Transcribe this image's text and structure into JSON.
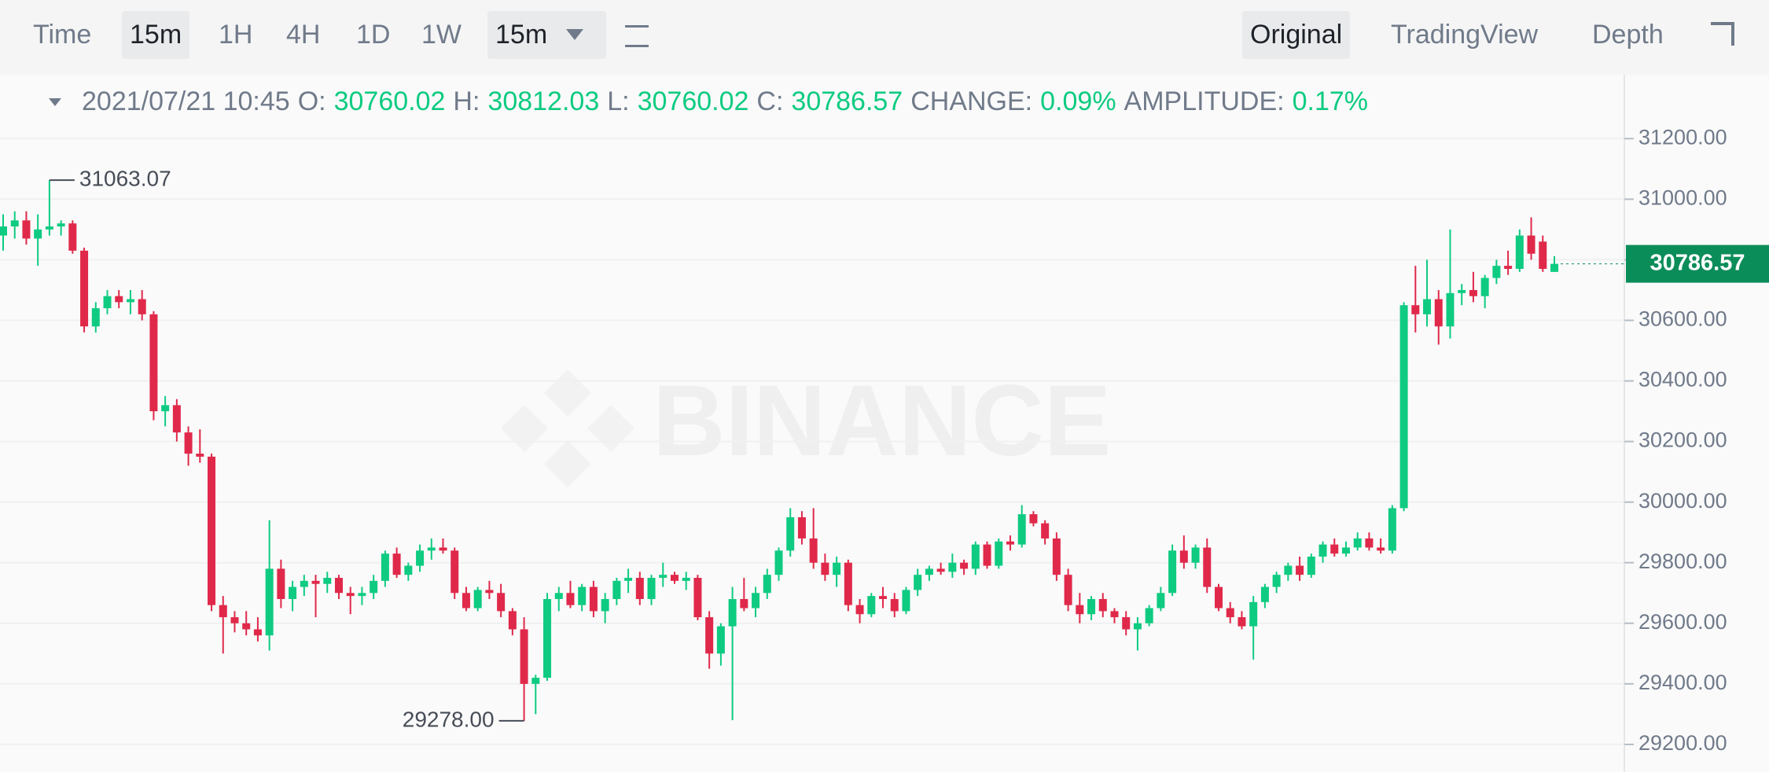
{
  "toolbar": {
    "intervals": [
      "Time",
      "15m",
      "1H",
      "4H",
      "1D",
      "1W"
    ],
    "dropdown": "15m",
    "views": [
      "Original",
      "TradingView",
      "Depth"
    ]
  },
  "info_bar": {
    "date": "2021/07/21 10:45",
    "items": [
      {
        "label": "O:",
        "value": "30760.02"
      },
      {
        "label": "H:",
        "value": "30812.03"
      },
      {
        "label": "L:",
        "value": "30760.02"
      },
      {
        "label": "C:",
        "value": "30786.57"
      },
      {
        "label": "CHANGE:",
        "value": "0.09%"
      },
      {
        "label": "AMPLITUDE:",
        "value": "0.17%"
      }
    ]
  },
  "chart_data": {
    "type": "candlestick",
    "watermark": "BINANCE",
    "up_color": "#0ecb81",
    "down_color": "#e0294a",
    "grid": true,
    "max_label": "31063.07",
    "min_label": "29278.00",
    "ylim": [
      29109,
      31411
    ],
    "yticks": [
      {
        "value": 29200,
        "label": "29200.00"
      },
      {
        "value": 29400,
        "label": "29400.00"
      },
      {
        "value": 29600,
        "label": "29600.00"
      },
      {
        "value": 29800,
        "label": "29800.00"
      },
      {
        "value": 30000,
        "label": "30000.00"
      },
      {
        "value": 30200,
        "label": "30200.00"
      },
      {
        "value": 30400,
        "label": "30400.00"
      },
      {
        "value": 30600,
        "label": "30600.00"
      },
      {
        "value": 30800,
        "label": "30800.00"
      },
      {
        "value": 31000,
        "label": "31000.00"
      },
      {
        "value": 31200,
        "label": "31200.00"
      }
    ],
    "ohlc": [
      [
        30880,
        30950,
        30830,
        30910
      ],
      [
        30910,
        30960,
        30870,
        30930
      ],
      [
        30930,
        30960,
        30850,
        30870
      ],
      [
        30870,
        30950,
        30780,
        30900
      ],
      [
        30900,
        31063.07,
        30880,
        30910
      ],
      [
        30910,
        30930,
        30880,
        30920
      ],
      [
        30920,
        30930,
        30820,
        30830
      ],
      [
        30830,
        30840,
        30560,
        30580
      ],
      [
        30580,
        30660,
        30560,
        30640
      ],
      [
        30640,
        30700,
        30620,
        30680
      ],
      [
        30680,
        30700,
        30640,
        30660
      ],
      [
        30660,
        30700,
        30620,
        30670
      ],
      [
        30670,
        30700,
        30600,
        30620
      ],
      [
        30620,
        30630,
        30270,
        30300
      ],
      [
        30300,
        30350,
        30250,
        30320
      ],
      [
        30320,
        30340,
        30200,
        30230
      ],
      [
        30230,
        30250,
        30120,
        30160
      ],
      [
        30160,
        30240,
        30130,
        30150
      ],
      [
        30150,
        30160,
        29640,
        29660
      ],
      [
        29660,
        29690,
        29500,
        29620
      ],
      [
        29620,
        29640,
        29570,
        29600
      ],
      [
        29600,
        29640,
        29560,
        29580
      ],
      [
        29580,
        29620,
        29540,
        29560
      ],
      [
        29560,
        29940,
        29510,
        29780
      ],
      [
        29780,
        29810,
        29650,
        29680
      ],
      [
        29680,
        29740,
        29640,
        29720
      ],
      [
        29720,
        29760,
        29690,
        29740
      ],
      [
        29740,
        29760,
        29620,
        29730
      ],
      [
        29730,
        29770,
        29700,
        29750
      ],
      [
        29750,
        29760,
        29680,
        29700
      ],
      [
        29700,
        29720,
        29630,
        29690
      ],
      [
        29690,
        29720,
        29660,
        29700
      ],
      [
        29700,
        29760,
        29680,
        29740
      ],
      [
        29740,
        29840,
        29720,
        29830
      ],
      [
        29830,
        29850,
        29750,
        29760
      ],
      [
        29760,
        29800,
        29740,
        29790
      ],
      [
        29790,
        29860,
        29770,
        29840
      ],
      [
        29840,
        29880,
        29810,
        29850
      ],
      [
        29850,
        29880,
        29830,
        29840
      ],
      [
        29840,
        29850,
        29680,
        29700
      ],
      [
        29700,
        29720,
        29640,
        29650
      ],
      [
        29650,
        29720,
        29640,
        29710
      ],
      [
        29710,
        29740,
        29680,
        29700
      ],
      [
        29700,
        29730,
        29620,
        29640
      ],
      [
        29640,
        29650,
        29560,
        29580
      ],
      [
        29580,
        29620,
        29278,
        29400
      ],
      [
        29400,
        29430,
        29300,
        29420
      ],
      [
        29420,
        29700,
        29410,
        29680
      ],
      [
        29680,
        29720,
        29640,
        29700
      ],
      [
        29700,
        29740,
        29650,
        29660
      ],
      [
        29660,
        29730,
        29640,
        29720
      ],
      [
        29720,
        29740,
        29620,
        29640
      ],
      [
        29640,
        29700,
        29600,
        29680
      ],
      [
        29680,
        29750,
        29660,
        29740
      ],
      [
        29740,
        29780,
        29700,
        29750
      ],
      [
        29750,
        29770,
        29660,
        29680
      ],
      [
        29680,
        29760,
        29660,
        29750
      ],
      [
        29750,
        29800,
        29720,
        29760
      ],
      [
        29760,
        29770,
        29730,
        29740
      ],
      [
        29740,
        29770,
        29710,
        29750
      ],
      [
        29750,
        29760,
        29610,
        29620
      ],
      [
        29620,
        29640,
        29450,
        29500
      ],
      [
        29500,
        29600,
        29460,
        29590
      ],
      [
        29590,
        29720,
        29280,
        29680
      ],
      [
        29680,
        29750,
        29640,
        29650
      ],
      [
        29650,
        29720,
        29620,
        29700
      ],
      [
        29700,
        29780,
        29680,
        29760
      ],
      [
        29760,
        29850,
        29740,
        29840
      ],
      [
        29840,
        29980,
        29820,
        29950
      ],
      [
        29950,
        29970,
        29860,
        29880
      ],
      [
        29880,
        29980,
        29780,
        29800
      ],
      [
        29800,
        29830,
        29740,
        29760
      ],
      [
        29760,
        29820,
        29720,
        29800
      ],
      [
        29800,
        29810,
        29640,
        29660
      ],
      [
        29660,
        29680,
        29600,
        29630
      ],
      [
        29630,
        29700,
        29620,
        29690
      ],
      [
        29690,
        29720,
        29650,
        29680
      ],
      [
        29680,
        29700,
        29620,
        29640
      ],
      [
        29640,
        29720,
        29630,
        29710
      ],
      [
        29710,
        29780,
        29690,
        29760
      ],
      [
        29760,
        29790,
        29740,
        29780
      ],
      [
        29780,
        29800,
        29760,
        29770
      ],
      [
        29770,
        29830,
        29750,
        29800
      ],
      [
        29800,
        29810,
        29760,
        29780
      ],
      [
        29780,
        29870,
        29760,
        29860
      ],
      [
        29860,
        29870,
        29780,
        29790
      ],
      [
        29790,
        29880,
        29780,
        29870
      ],
      [
        29870,
        29890,
        29840,
        29860
      ],
      [
        29860,
        29990,
        29850,
        29960
      ],
      [
        29960,
        29970,
        29920,
        29930
      ],
      [
        29930,
        29940,
        29860,
        29880
      ],
      [
        29880,
        29900,
        29740,
        29760
      ],
      [
        29760,
        29780,
        29640,
        29660
      ],
      [
        29660,
        29700,
        29600,
        29630
      ],
      [
        29630,
        29690,
        29610,
        29680
      ],
      [
        29680,
        29700,
        29620,
        29640
      ],
      [
        29640,
        29650,
        29600,
        29620
      ],
      [
        29620,
        29640,
        29560,
        29580
      ],
      [
        29580,
        29620,
        29510,
        29600
      ],
      [
        29600,
        29660,
        29590,
        29650
      ],
      [
        29650,
        29720,
        29640,
        29700
      ],
      [
        29700,
        29860,
        29690,
        29840
      ],
      [
        29840,
        29890,
        29780,
        29800
      ],
      [
        29800,
        29860,
        29780,
        29850
      ],
      [
        29850,
        29880,
        29700,
        29720
      ],
      [
        29720,
        29730,
        29640,
        29650
      ],
      [
        29650,
        29670,
        29600,
        29620
      ],
      [
        29620,
        29640,
        29580,
        29590
      ],
      [
        29590,
        29690,
        29480,
        29670
      ],
      [
        29670,
        29730,
        29650,
        29720
      ],
      [
        29720,
        29770,
        29700,
        29760
      ],
      [
        29760,
        29800,
        29740,
        29790
      ],
      [
        29790,
        29820,
        29740,
        29760
      ],
      [
        29760,
        29830,
        29750,
        29820
      ],
      [
        29820,
        29870,
        29800,
        29860
      ],
      [
        29860,
        29880,
        29820,
        29830
      ],
      [
        29830,
        29870,
        29820,
        29850
      ],
      [
        29850,
        29900,
        29840,
        29880
      ],
      [
        29880,
        29900,
        29840,
        29850
      ],
      [
        29850,
        29880,
        29830,
        29840
      ],
      [
        29840,
        29990,
        29830,
        29980
      ],
      [
        29980,
        30660,
        29970,
        30650
      ],
      [
        30650,
        30780,
        30560,
        30620
      ],
      [
        30620,
        30800,
        30580,
        30670
      ],
      [
        30670,
        30700,
        30520,
        30580
      ],
      [
        30580,
        30900,
        30540,
        30690
      ],
      [
        30690,
        30720,
        30650,
        30700
      ],
      [
        30700,
        30760,
        30660,
        30680
      ],
      [
        30680,
        30750,
        30640,
        30740
      ],
      [
        30740,
        30800,
        30720,
        30780
      ],
      [
        30780,
        30830,
        30750,
        30770
      ],
      [
        30770,
        30900,
        30760,
        30880
      ],
      [
        30880,
        30940,
        30800,
        30820
      ],
      [
        30860,
        30880,
        30760,
        30770
      ],
      [
        30760.02,
        30812.03,
        30760.02,
        30786.57
      ]
    ]
  }
}
